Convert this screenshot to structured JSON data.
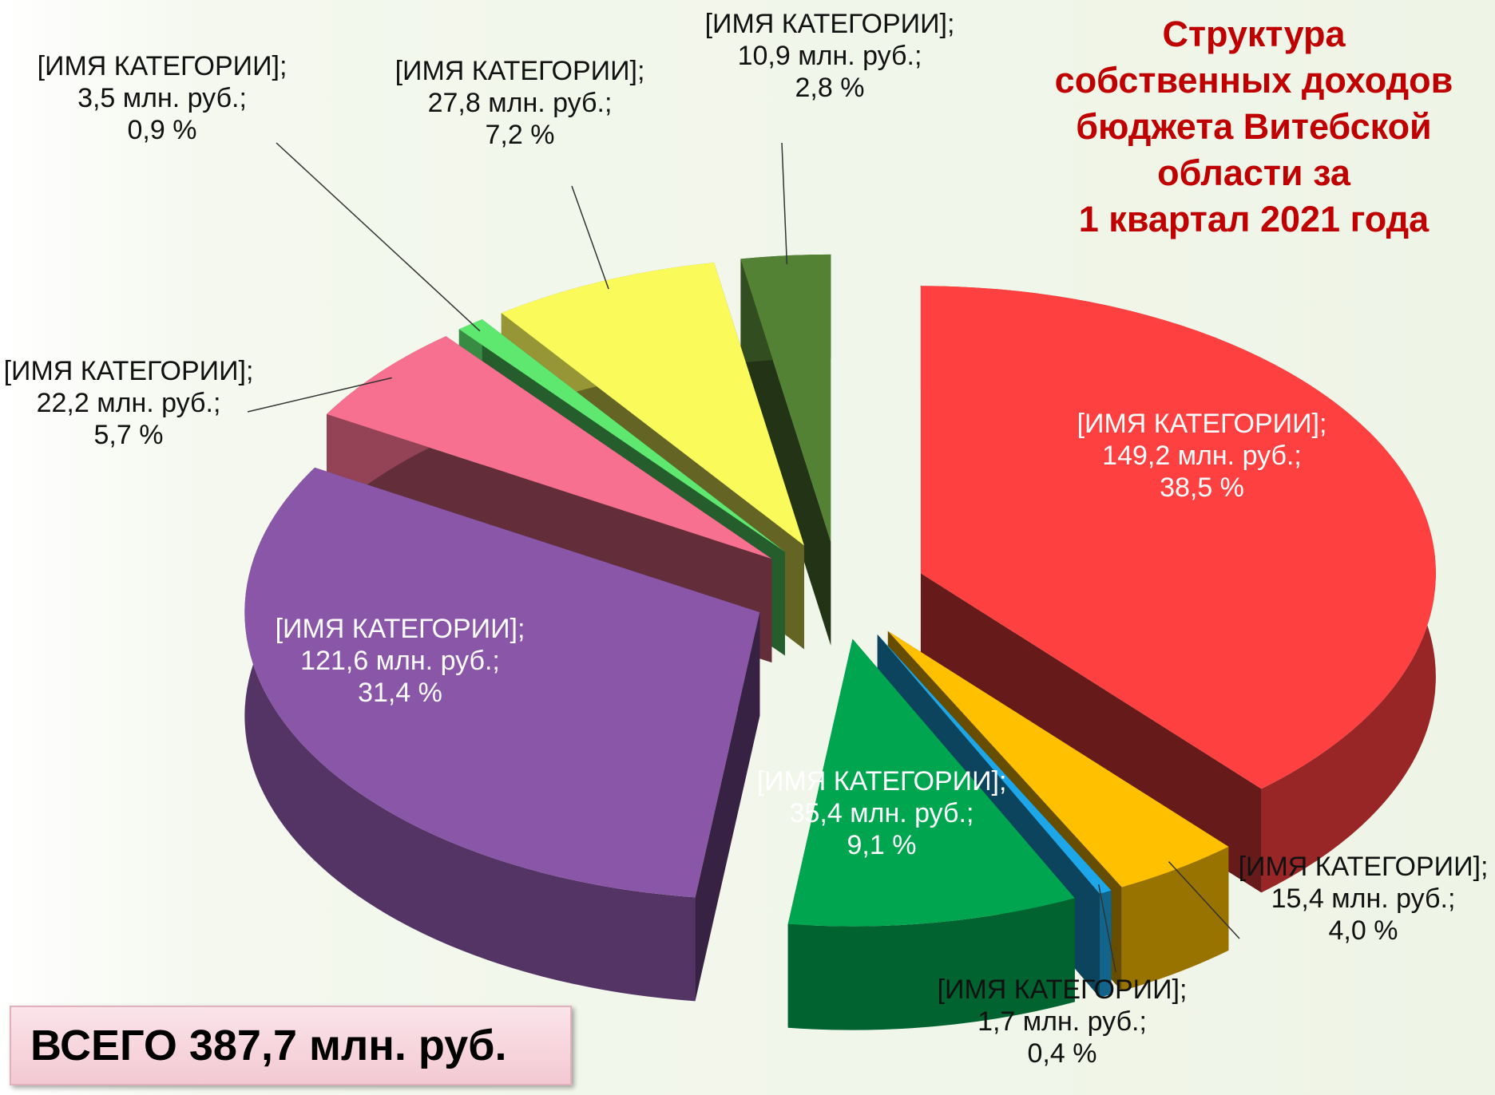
{
  "chart_data": {
    "type": "pie",
    "title_lines": [
      "Структура",
      "собственных доходов",
      "бюджета Витебской",
      "области за",
      "1 квартал 2021 года"
    ],
    "categories": [
      "[ИМЯ КАТЕГОРИИ];",
      "[ИМЯ КАТЕГОРИИ];",
      "[ИМЯ КАТЕГОРИИ];",
      "[ИМЯ КАТЕГОРИИ];",
      "[ИМЯ КАТЕГОРИИ];",
      "[ИМЯ КАТЕГОРИИ];",
      "[ИМЯ КАТЕГОРИИ];",
      "[ИМЯ КАТЕГОРИИ];",
      "[ИМЯ КАТЕГОРИИ];"
    ],
    "values": [
      149.2,
      15.4,
      1.7,
      35.4,
      121.6,
      22.2,
      3.5,
      27.8,
      10.9
    ],
    "value_labels": [
      "149,2 млн. руб.;",
      "15,4 млн. руб.;",
      "1,7 млн. руб.;",
      "35,4 млн. руб.;",
      "121,6 млн. руб.;",
      "22,2 млн. руб.;",
      "3,5 млн. руб.;",
      "27,8 млн. руб.;",
      "10,9 млн. руб.;"
    ],
    "percents": [
      38.5,
      4.0,
      0.4,
      9.1,
      31.4,
      5.7,
      0.9,
      7.2,
      2.8
    ],
    "percent_labels": [
      "38,5 %",
      "4,0 %",
      "0,4 %",
      "9,1 %",
      "31,4 %",
      "5,7 %",
      "0,9 %",
      "7,2 %",
      "2,8 %"
    ],
    "colors": [
      "#ff4040",
      "#ffc000",
      "#1ea7e8",
      "#00a550",
      "#8a56a8",
      "#f7708f",
      "#5ee870",
      "#fafa5a",
      "#548235"
    ],
    "total_label": "ВСЕГО  387,7 млн. руб."
  }
}
